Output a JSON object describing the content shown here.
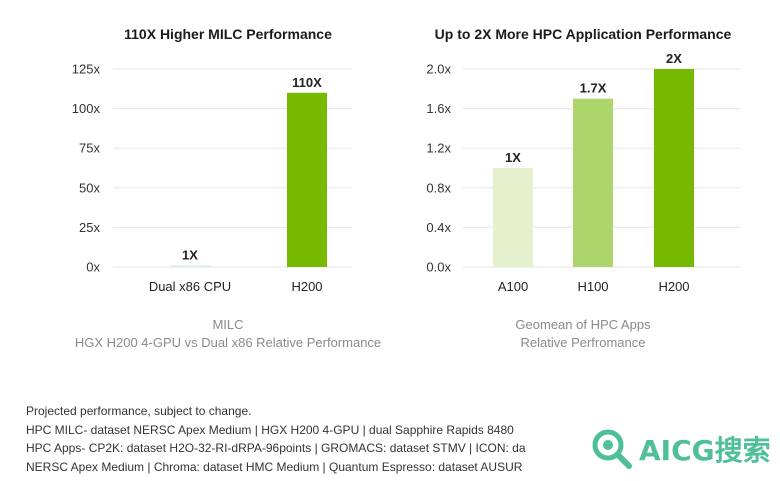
{
  "chart_data": [
    {
      "type": "bar",
      "title": "110X Higher MILC Performance",
      "categories": [
        "Dual x86 CPU",
        "H200"
      ],
      "values": [
        1,
        110
      ],
      "data_labels": [
        "1X",
        "110X"
      ],
      "bar_colors": [
        "#d6ecf7",
        "#76b900"
      ],
      "yticks": [
        "0x",
        "25x",
        "50x",
        "75x",
        "100x",
        "125x"
      ],
      "ylim": [
        0,
        125
      ],
      "grid": true,
      "caption_line1": "MILC",
      "caption_line2": "HGX H200 4-GPU vs Dual x86 Relative Performance"
    },
    {
      "type": "bar",
      "title": "Up to 2X More HPC Application Performance",
      "categories": [
        "A100",
        "H100",
        "H200"
      ],
      "values": [
        1,
        1.7,
        2
      ],
      "data_labels": [
        "1X",
        "1.7X",
        "2X"
      ],
      "bar_colors": [
        "#e4f1cc",
        "#acd66c",
        "#76b900"
      ],
      "yticks": [
        "0.0x",
        "0.4x",
        "0.8x",
        "1.2x",
        "1.6x",
        "2.0x"
      ],
      "ylim": [
        0,
        2
      ],
      "grid": true,
      "caption_line1": "Geomean of HPC Apps",
      "caption_line2": "Relative Perfromance"
    }
  ],
  "footnotes": [
    "Projected performance, subject to change.",
    "HPC MILC- dataset NERSC Apex Medium | HGX H200 4-GPU | dual Sapphire Rapids 8480",
    "HPC Apps- CP2K: dataset H2O-32-RI-dRPA-96points | GROMACS: dataset STMV | ICON: da",
    "NERSC Apex Medium | Chroma: dataset HMC Medium | Quantum Espresso: dataset AUSUR"
  ],
  "watermark": {
    "text": "AICG搜索",
    "icon": "magnifier-icon",
    "color": "#4fbf9a"
  }
}
